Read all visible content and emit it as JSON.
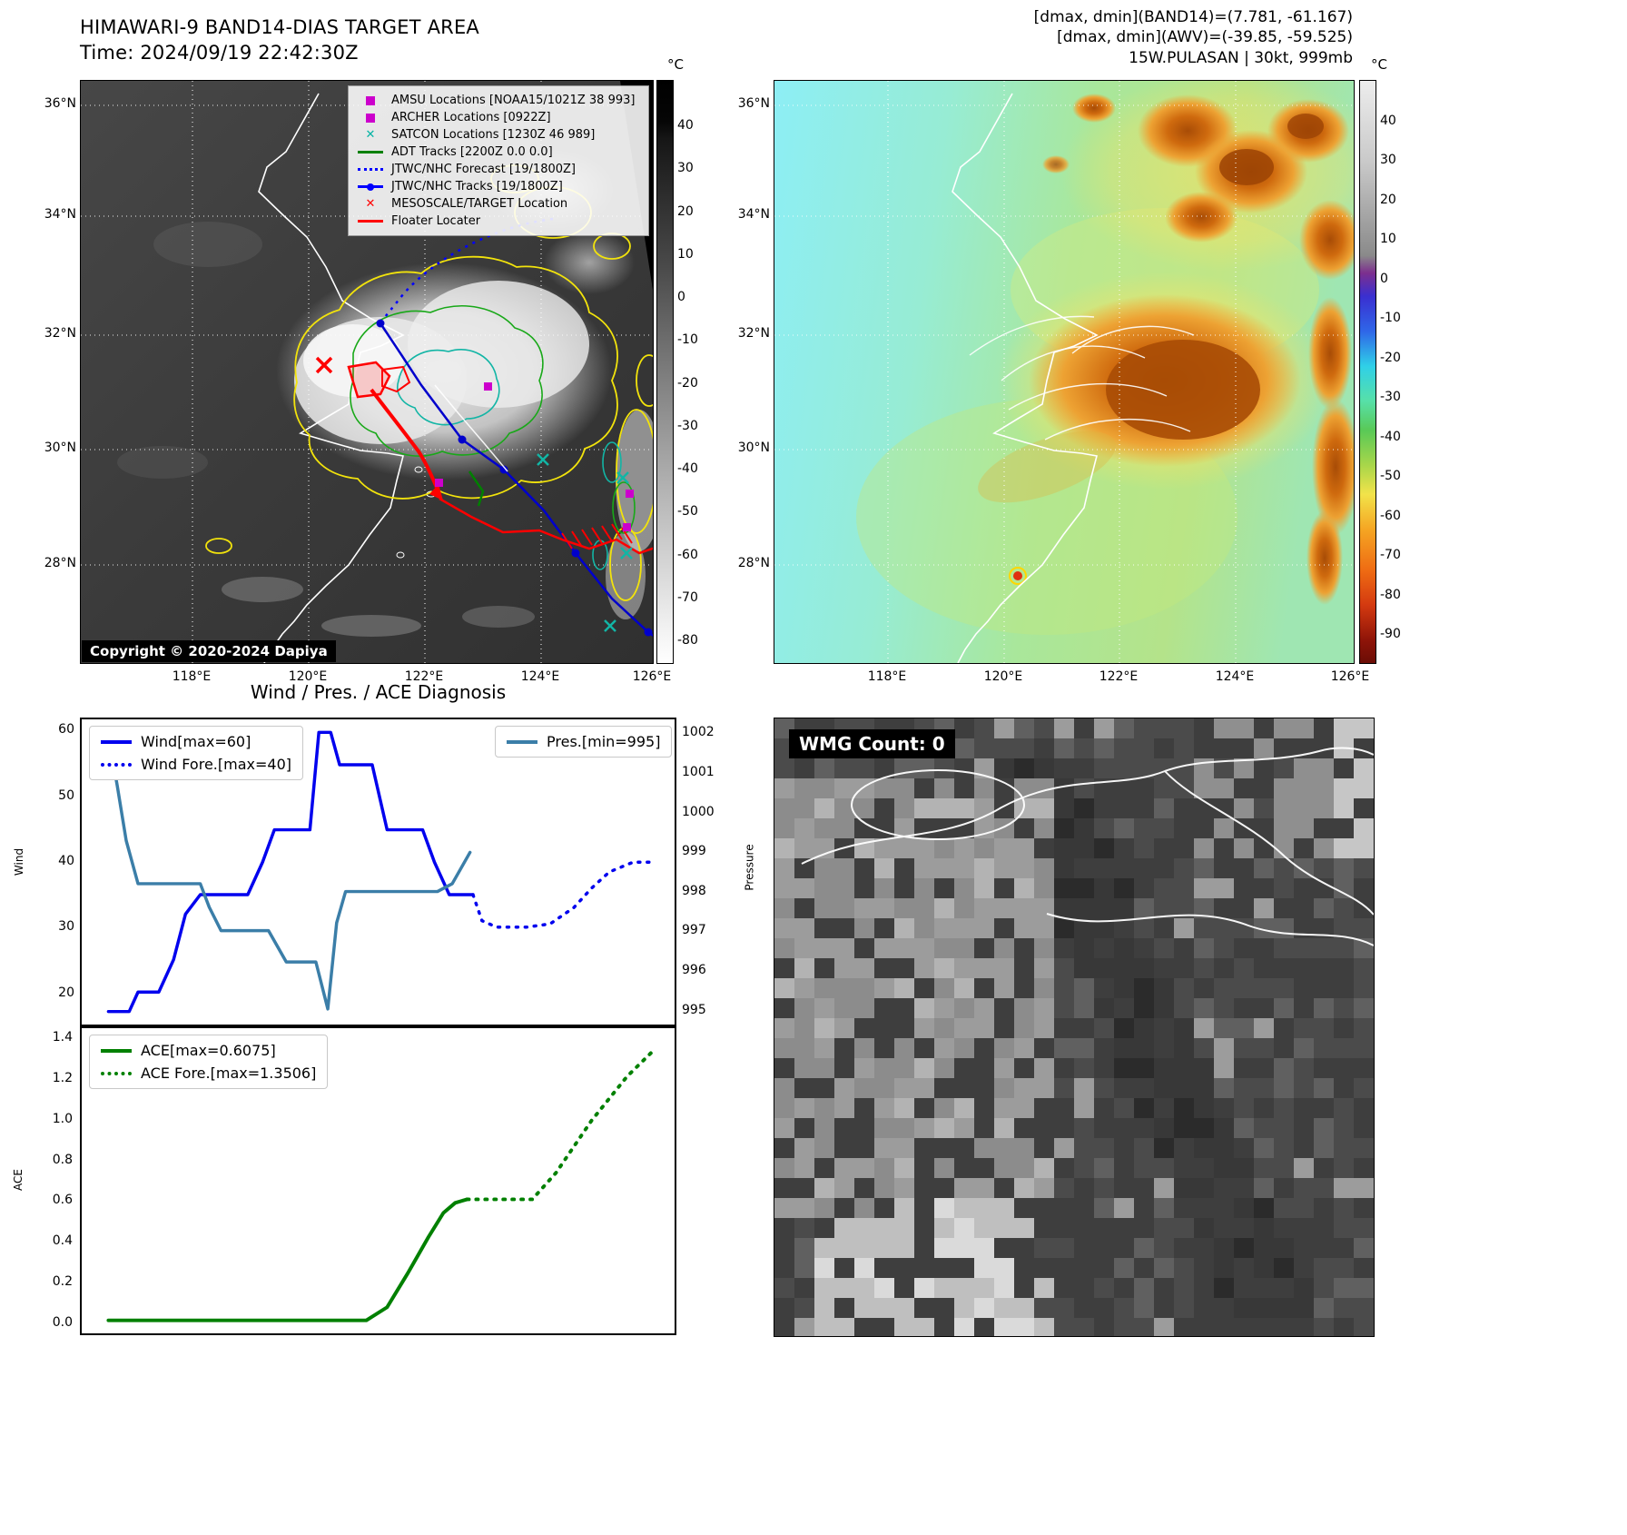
{
  "band14": {
    "title": "HIMAWARI-9 BAND14-DIAS TARGET AREA",
    "time_label": "Time: 2024/09/19 22:42:30Z",
    "copyright": "Copyright © 2020-2024 Dapiya",
    "colorbar_unit": "°C",
    "colorbar_ticks": [
      "40",
      "30",
      "20",
      "10",
      "0",
      "-10",
      "-20",
      "-30",
      "-40",
      "-50",
      "-60",
      "-70",
      "-80"
    ],
    "lat_ticks": [
      "36°N",
      "34°N",
      "32°N",
      "30°N",
      "28°N"
    ],
    "lon_ticks": [
      "118°E",
      "120°E",
      "122°E",
      "124°E",
      "126°E"
    ],
    "legend": [
      {
        "label": "AMSU Locations [NOAA15/1021Z 38 993]",
        "marker": "square",
        "color": "#cc00cc"
      },
      {
        "label": "ARCHER Locations [0922Z]",
        "marker": "square",
        "color": "#cc00cc"
      },
      {
        "label": "SATCON Locations [1230Z 46 989]",
        "marker": "x",
        "color": "#00b3a4"
      },
      {
        "label": "ADT Tracks [2200Z 0.0 0.0]",
        "marker": "line",
        "color": "#008000"
      },
      {
        "label": "JTWC/NHC Forecast [19/1800Z]",
        "marker": "dotted",
        "color": "#0000ff"
      },
      {
        "label": "JTWC/NHC Tracks [19/1800Z]",
        "marker": "linedot",
        "color": "#0000ff"
      },
      {
        "label": "MESOSCALE/TARGET Location",
        "marker": "x",
        "color": "#ff0000"
      },
      {
        "label": "Floater Locater",
        "marker": "line",
        "color": "#ff0000"
      }
    ]
  },
  "awv": {
    "header_lines": [
      "[dmax, dmin](BAND14)=(7.781, -61.167)",
      "[dmax, dmin](AWV)=(-39.85, -59.525)",
      "15W.PULASAN | 30kt, 999mb"
    ],
    "colorbar_unit": "°C",
    "colorbar_ticks": [
      "40",
      "30",
      "20",
      "10",
      "0",
      "-10",
      "-20",
      "-30",
      "-40",
      "-50",
      "-60",
      "-70",
      "-80",
      "-90"
    ],
    "lat_ticks": [
      "36°N",
      "34°N",
      "32°N",
      "30°N",
      "28°N"
    ],
    "lon_ticks": [
      "118°E",
      "120°E",
      "122°E",
      "124°E",
      "126°E"
    ]
  },
  "diagnosis": {
    "title": "Wind / Pres. / ACE Diagnosis",
    "wind_axis_label": "Wind",
    "pressure_axis_label": "Pressure",
    "ace_axis_label": "ACE",
    "wind_ticks": [
      "60",
      "50",
      "40",
      "30",
      "20"
    ],
    "pressure_ticks": [
      "1002",
      "1001",
      "1000",
      "999",
      "998",
      "997",
      "996",
      "995"
    ],
    "ace_ticks": [
      "1.4",
      "1.2",
      "1.0",
      "0.8",
      "0.6",
      "0.4",
      "0.2",
      "0.0"
    ],
    "legend_wind": "Wind[max=60]",
    "legend_wind_fore": "Wind Fore.[max=40]",
    "legend_pres": "Pres.[min=995]",
    "legend_ace": "ACE[max=0.6075]",
    "legend_ace_fore": "ACE Fore.[max=1.3506]"
  },
  "wmg": {
    "count_label": "WMG Count: 0"
  },
  "chart_data": [
    {
      "type": "line",
      "title": "Wind / Pres. / ACE Diagnosis (wind and pressure panel)",
      "svg_id": "svg-windpres",
      "x_axis": "time (no tick labels shown)",
      "axes": {
        "left": {
          "label": "Wind",
          "range": [
            15,
            62
          ],
          "ticks": [
            60,
            50,
            40,
            30,
            20
          ]
        },
        "right": {
          "label": "Pressure",
          "range": [
            994.6,
            1002.4
          ],
          "ticks": [
            1002,
            1001,
            1000,
            999,
            998,
            997,
            996,
            995
          ]
        }
      },
      "series": [
        {
          "name": "Wind[max=60]",
          "axis": "left",
          "color": "#0000ee",
          "width": 3.5,
          "x": [
            0.045,
            0.08,
            0.095,
            0.13,
            0.155,
            0.175,
            0.2,
            0.28,
            0.305,
            0.325,
            0.385,
            0.4,
            0.42,
            0.435,
            0.49,
            0.515,
            0.55,
            0.575,
            0.595,
            0.62,
            0.66
          ],
          "y": [
            17,
            17,
            20,
            20,
            25,
            32,
            35,
            35,
            40,
            45,
            45,
            60,
            60,
            55,
            55,
            45,
            45,
            45,
            40,
            35,
            35
          ]
        },
        {
          "name": "Wind Fore.[max=40]",
          "axis": "left",
          "color": "#0000ee",
          "width": 3.5,
          "dash": "2 8",
          "x": [
            0.66,
            0.675,
            0.7,
            0.75,
            0.79,
            0.83,
            0.86,
            0.89,
            0.93,
            0.965
          ],
          "y": [
            35,
            31,
            30,
            30,
            30.5,
            33,
            36,
            38.5,
            40,
            40
          ]
        },
        {
          "name": "Pres.[min=995]",
          "axis": "right",
          "color": "#3b7ea8",
          "width": 3.5,
          "x": [
            0.045,
            0.06,
            0.075,
            0.095,
            0.2,
            0.215,
            0.235,
            0.3,
            0.315,
            0.345,
            0.395,
            0.405,
            0.415,
            0.43,
            0.445,
            0.6,
            0.625,
            0.655
          ],
          "y": [
            1002,
            1000.7,
            999.3,
            998.2,
            998.2,
            997.6,
            997,
            997,
            997,
            996.2,
            996.2,
            995.6,
            995,
            997.2,
            998,
            998,
            998.2,
            999
          ]
        }
      ]
    },
    {
      "type": "line",
      "title": "ACE panel",
      "svg_id": "svg-ace",
      "x_axis": "time (no tick labels shown)",
      "axes": {
        "left": {
          "label": "ACE",
          "range": [
            -0.06,
            1.46
          ],
          "ticks": [
            1.4,
            1.2,
            1.0,
            0.8,
            0.6,
            0.4,
            0.2,
            0.0
          ]
        }
      },
      "series": [
        {
          "name": "ACE[max=0.6075]",
          "axis": "left",
          "color": "#008000",
          "width": 4,
          "x": [
            0.045,
            0.48,
            0.515,
            0.55,
            0.585,
            0.61,
            0.63,
            0.65
          ],
          "y": [
            0.005,
            0.005,
            0.07,
            0.24,
            0.42,
            0.54,
            0.59,
            0.6075
          ]
        },
        {
          "name": "ACE Fore.[max=1.3506]",
          "axis": "left",
          "color": "#008000",
          "width": 4,
          "dash": "2 8",
          "x": [
            0.65,
            0.7,
            0.76,
            0.8,
            0.86,
            0.92,
            0.965
          ],
          "y": [
            0.6075,
            0.6075,
            0.6075,
            0.74,
            1.0,
            1.22,
            1.3506
          ]
        }
      ]
    }
  ]
}
